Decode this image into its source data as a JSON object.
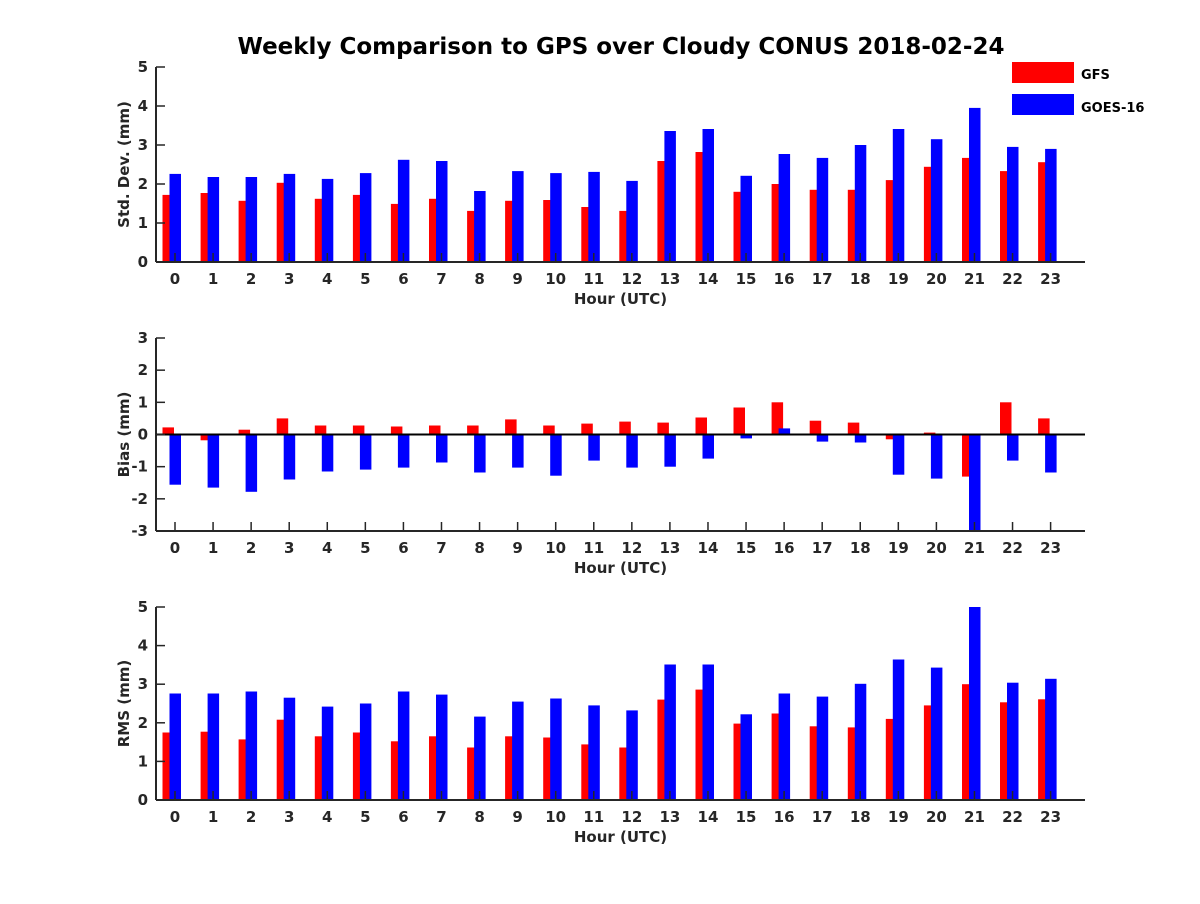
{
  "title": "Weekly Comparison to GPS over Cloudy CONUS 2018-02-24",
  "legend": {
    "placement": "top-right",
    "items": [
      {
        "label": "GFS",
        "color": "#ff0000"
      },
      {
        "label": "GOES-16",
        "color": "#0000ff"
      }
    ]
  },
  "chart_data": [
    {
      "type": "bar",
      "xlabel": "Hour (UTC)",
      "ylabel": "Std. Dev. (mm)",
      "ylim": [
        0,
        5
      ],
      "yticks": [
        0,
        1,
        2,
        3,
        4,
        5
      ],
      "grid": false,
      "categories": [
        "0",
        "1",
        "2",
        "3",
        "4",
        "5",
        "6",
        "7",
        "8",
        "9",
        "10",
        "11",
        "12",
        "13",
        "14",
        "15",
        "16",
        "17",
        "18",
        "19",
        "20",
        "21",
        "22",
        "23"
      ],
      "series": [
        {
          "name": "GFS",
          "color": "#ff0000",
          "values": [
            1.72,
            1.77,
            1.57,
            2.03,
            1.62,
            1.72,
            1.49,
            1.62,
            1.31,
            1.57,
            1.59,
            1.41,
            1.31,
            2.59,
            2.82,
            1.8,
            2.0,
            1.85,
            1.85,
            2.1,
            2.44,
            2.67,
            2.33,
            2.56
          ]
        },
        {
          "name": "GOES-16",
          "color": "#0000ff",
          "values": [
            2.26,
            2.18,
            2.18,
            2.26,
            2.13,
            2.28,
            2.62,
            2.59,
            1.82,
            2.33,
            2.28,
            2.31,
            2.08,
            3.36,
            3.41,
            2.21,
            2.77,
            2.67,
            3.0,
            3.41,
            3.15,
            3.95,
            2.95,
            2.9
          ]
        }
      ]
    },
    {
      "type": "bar",
      "xlabel": "Hour (UTC)",
      "ylabel": "Bias (mm)",
      "ylim": [
        -3,
        3
      ],
      "yticks": [
        -3,
        -2,
        -1,
        0,
        1,
        2,
        3
      ],
      "grid": false,
      "zero_line": true,
      "categories": [
        "0",
        "1",
        "2",
        "3",
        "4",
        "5",
        "6",
        "7",
        "8",
        "9",
        "10",
        "11",
        "12",
        "13",
        "14",
        "15",
        "16",
        "17",
        "18",
        "19",
        "20",
        "21",
        "22",
        "23"
      ],
      "series": [
        {
          "name": "GFS",
          "color": "#ff0000",
          "values": [
            0.22,
            -0.18,
            0.15,
            0.5,
            0.28,
            0.28,
            0.25,
            0.28,
            0.28,
            0.47,
            0.28,
            0.34,
            0.4,
            0.37,
            0.53,
            0.84,
            1.0,
            0.43,
            0.37,
            -0.15,
            0.06,
            -1.31,
            1.0,
            0.5
          ]
        },
        {
          "name": "GOES-16",
          "color": "#0000ff",
          "values": [
            -1.56,
            -1.65,
            -1.78,
            -1.4,
            -1.15,
            -1.09,
            -1.03,
            -0.87,
            -1.18,
            -1.03,
            -1.28,
            -0.81,
            -1.03,
            -1.0,
            -0.75,
            -0.12,
            0.19,
            -0.22,
            -0.25,
            -1.25,
            -1.37,
            -3.0,
            -0.81,
            -1.18
          ]
        }
      ]
    },
    {
      "type": "bar",
      "xlabel": "Hour (UTC)",
      "ylabel": "RMS (mm)",
      "ylim": [
        0,
        5
      ],
      "yticks": [
        0,
        1,
        2,
        3,
        4,
        5
      ],
      "grid": false,
      "categories": [
        "0",
        "1",
        "2",
        "3",
        "4",
        "5",
        "6",
        "7",
        "8",
        "9",
        "10",
        "11",
        "12",
        "13",
        "14",
        "15",
        "16",
        "17",
        "18",
        "19",
        "20",
        "21",
        "22",
        "23"
      ],
      "series": [
        {
          "name": "GFS",
          "color": "#ff0000",
          "values": [
            1.75,
            1.77,
            1.57,
            2.08,
            1.65,
            1.75,
            1.52,
            1.65,
            1.36,
            1.65,
            1.62,
            1.44,
            1.36,
            2.6,
            2.86,
            1.98,
            2.24,
            1.91,
            1.88,
            2.1,
            2.45,
            3.0,
            2.53,
            2.61
          ]
        },
        {
          "name": "GOES-16",
          "color": "#0000ff",
          "values": [
            2.76,
            2.76,
            2.81,
            2.65,
            2.42,
            2.5,
            2.81,
            2.73,
            2.16,
            2.55,
            2.63,
            2.45,
            2.32,
            3.51,
            3.51,
            2.22,
            2.76,
            2.68,
            3.01,
            3.64,
            3.43,
            5.0,
            3.04,
            3.14
          ]
        }
      ]
    }
  ]
}
